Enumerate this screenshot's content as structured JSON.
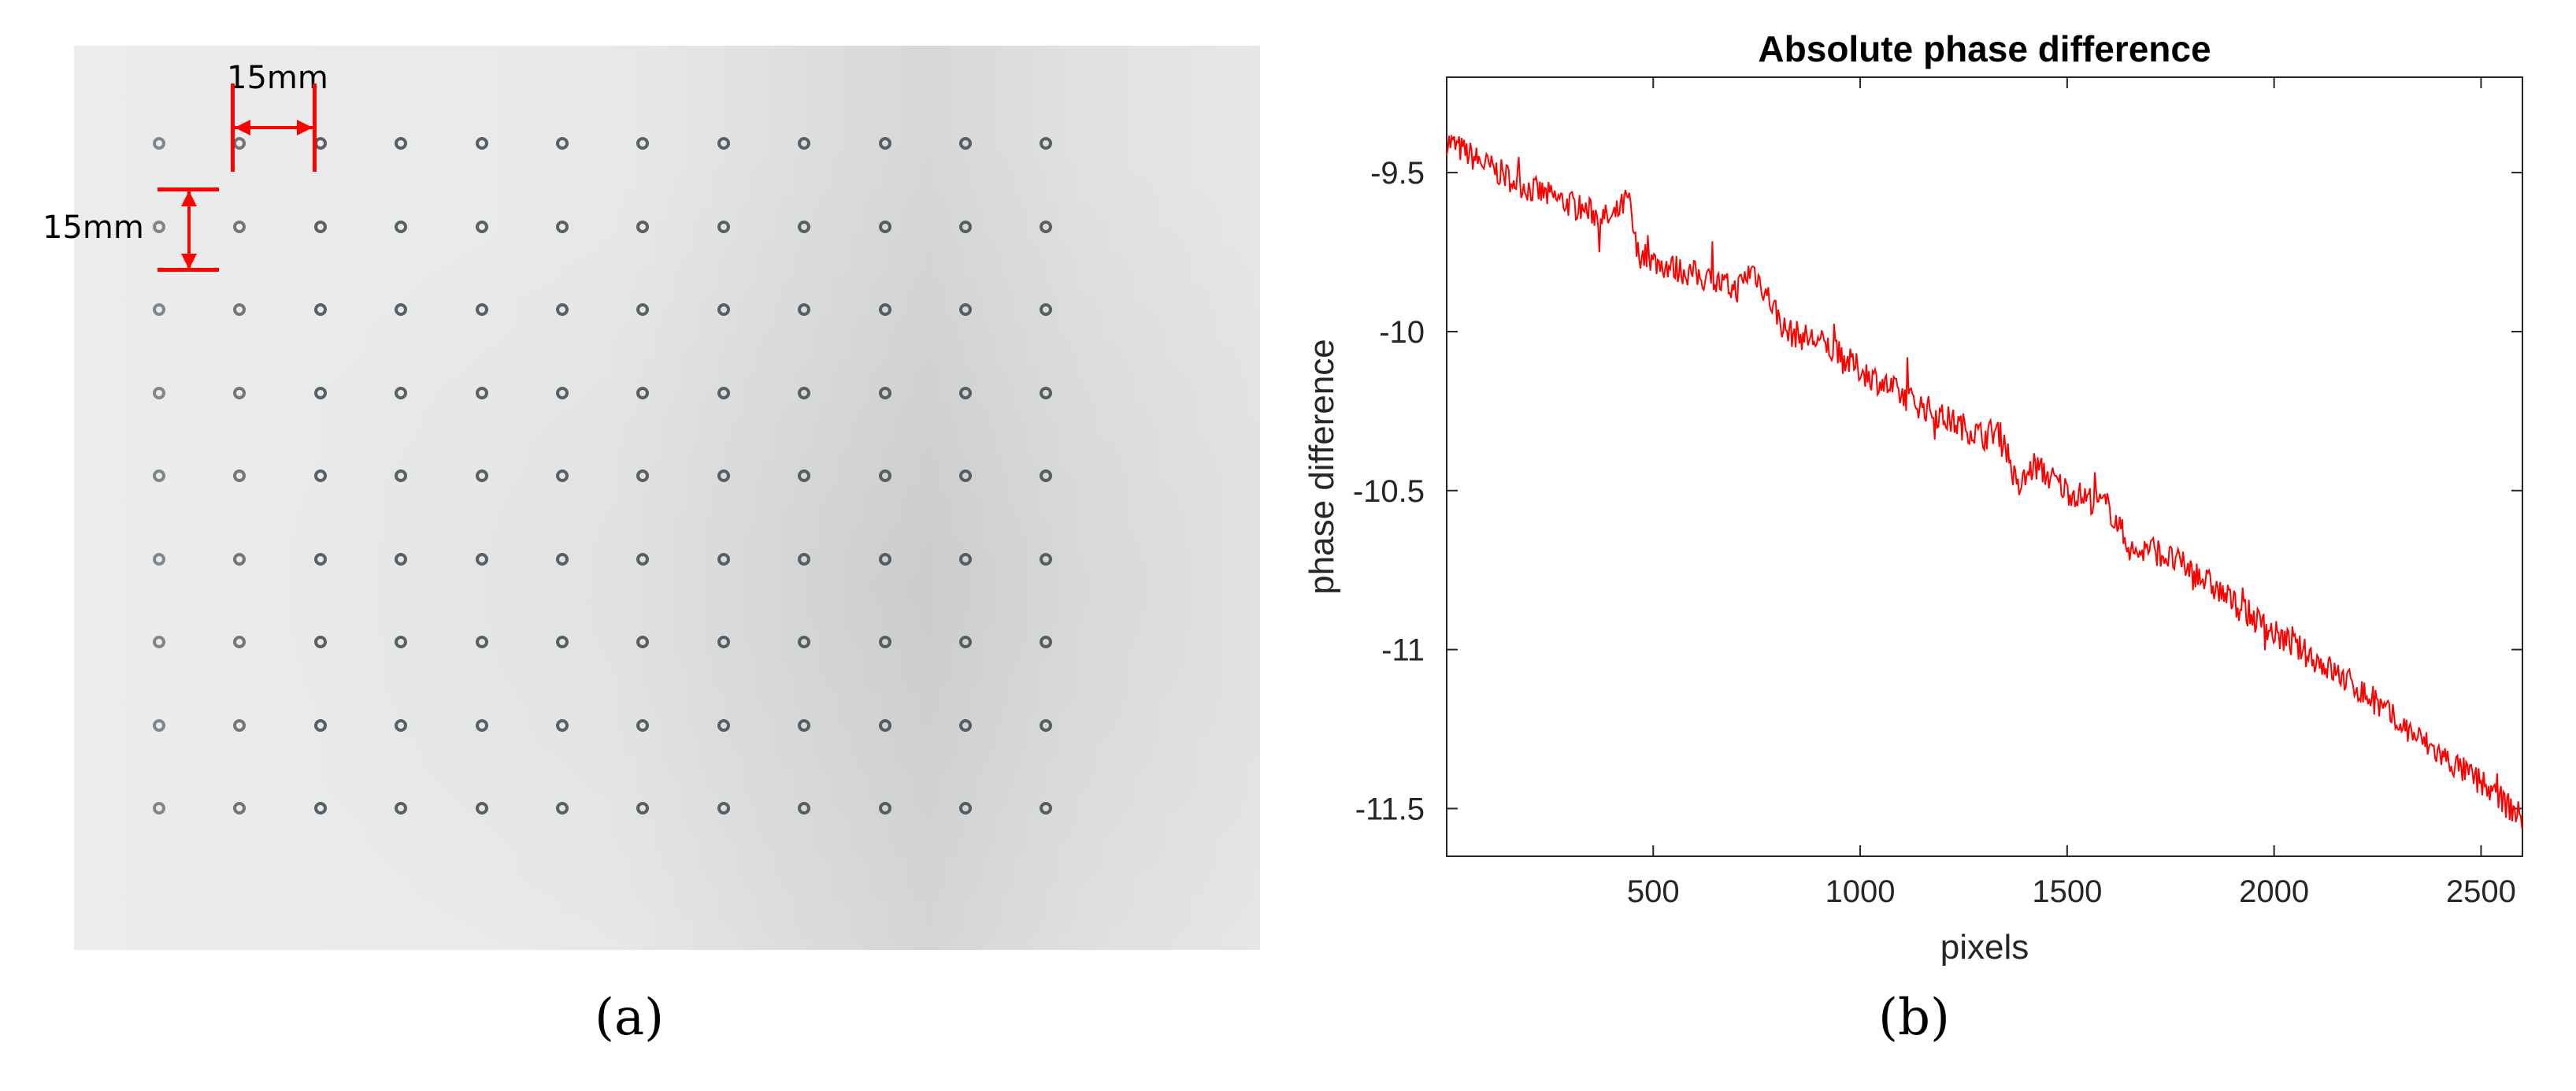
{
  "panel_a": {
    "caption": "(a)",
    "dimension_horizontal": "15mm",
    "dimension_vertical": "15mm",
    "grid": {
      "rows": 9,
      "cols": 12
    }
  },
  "panel_b": {
    "caption": "(b)"
  },
  "chart_data": {
    "type": "line",
    "title": "Absolute phase difference",
    "xlabel": "pixels",
    "ylabel": "phase difference",
    "xlim": [
      1,
      2600
    ],
    "ylim": [
      -11.65,
      -9.2
    ],
    "xticks": [
      500,
      1000,
      1500,
      2000,
      2500
    ],
    "yticks": [
      -9.5,
      -10,
      -10.5,
      -11,
      -11.5
    ],
    "xtick_labels": [
      "500",
      "1000",
      "1500",
      "2000",
      "2500"
    ],
    "ytick_labels": [
      "-9.5",
      "-10",
      "-10.5",
      "-11",
      "-11.5"
    ],
    "grid": false,
    "series": [
      {
        "color": "#ff0000",
        "x": [
          1,
          100,
          200,
          300,
          400,
          440,
          460,
          500,
          600,
          700,
          740,
          790,
          820,
          900,
          1000,
          1100,
          1200,
          1300,
          1340,
          1380,
          1420,
          1500,
          1600,
          1660,
          1700,
          1800,
          1900,
          2000,
          2100,
          2200,
          2300,
          2400,
          2500,
          2600
        ],
        "y": [
          -9.4,
          -9.48,
          -9.55,
          -9.6,
          -9.65,
          -9.58,
          -9.75,
          -9.78,
          -9.82,
          -9.87,
          -9.8,
          -9.92,
          -10.0,
          -10.03,
          -10.12,
          -10.2,
          -10.27,
          -10.33,
          -10.3,
          -10.5,
          -10.42,
          -10.5,
          -10.55,
          -10.7,
          -10.68,
          -10.75,
          -10.85,
          -10.95,
          -11.03,
          -11.12,
          -11.23,
          -11.33,
          -11.42,
          -11.53
        ]
      }
    ]
  }
}
